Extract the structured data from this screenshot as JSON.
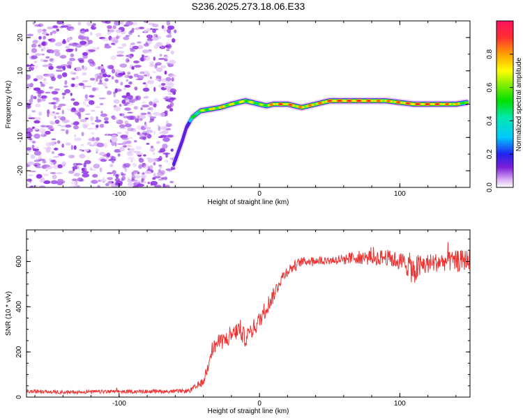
{
  "title": "S236.2025.273.18.06.E33",
  "chart_data": [
    {
      "type": "heatmap",
      "xlabel": "Height of straight line (km)",
      "ylabel": "Frequency (Hz)",
      "xlim": [
        -166,
        150
      ],
      "ylim": [
        -25,
        25
      ],
      "xticks": [
        -100,
        0,
        100
      ],
      "xtick_labels": [
        "-100",
        "0",
        "100"
      ],
      "yticks": [
        20,
        10,
        0,
        -10,
        -20
      ],
      "ytick_labels": [
        "20",
        "10",
        "0",
        "-10",
        "-20"
      ],
      "colorbar": {
        "label": "Normalized spectral amplitude",
        "range": [
          0,
          1
        ],
        "ticks": [
          0,
          0.2,
          0.4,
          0.6,
          0.8
        ],
        "tick_labels": [
          "0.0",
          "0.2",
          "0.4",
          "0.6",
          "0.8"
        ]
      },
      "noise_region_x": [
        -166,
        -60
      ],
      "noise_amplitude": 0.15,
      "ridge": {
        "x": [
          -61,
          -55,
          -52,
          -48,
          -42,
          -35,
          -28,
          -20,
          -15,
          -10,
          -5,
          0,
          5,
          10,
          20,
          30,
          40,
          50,
          60,
          70,
          80,
          90,
          100,
          110,
          120,
          130,
          140,
          148
        ],
        "freq": [
          -18,
          -11,
          -7,
          -4,
          -2,
          -1.5,
          -1,
          0,
          0.5,
          1,
          0.5,
          0,
          -0.5,
          0,
          0,
          -1,
          0,
          1,
          1,
          1,
          1,
          1,
          0.5,
          0,
          0,
          0,
          0,
          0.5
        ],
        "amplitude": [
          0.22,
          0.2,
          0.25,
          0.5,
          0.65,
          0.75,
          0.8,
          0.75,
          0.7,
          0.75,
          0.7,
          0.65,
          0.7,
          0.9,
          0.92,
          0.85,
          0.85,
          0.92,
          0.95,
          0.95,
          0.92,
          0.85,
          0.9,
          0.95,
          0.95,
          0.92,
          0.85,
          0.6
        ]
      }
    },
    {
      "type": "line",
      "xlabel": "Height of straight line (km)",
      "ylabel": "SNR (10 * v/v)",
      "xlim": [
        -166,
        150
      ],
      "ylim": [
        0,
        740
      ],
      "xticks": [
        -100,
        0,
        100
      ],
      "xtick_labels": [
        "-100",
        "0",
        "100"
      ],
      "yticks": [
        0,
        200,
        400,
        600
      ],
      "ytick_labels": [
        "0",
        "200",
        "400",
        "600"
      ],
      "color": "#ee3333",
      "series": [
        {
          "name": "SNR",
          "x": [
            -166,
            -140,
            -110,
            -80,
            -60,
            -50,
            -45,
            -40,
            -37,
            -35,
            -30,
            -25,
            -20,
            -15,
            -10,
            -5,
            0,
            5,
            10,
            15,
            20,
            25,
            30,
            40,
            50,
            60,
            70,
            80,
            90,
            100,
            105,
            110,
            115,
            120,
            130,
            140,
            150
          ],
          "values": [
            25,
            22,
            24,
            25,
            25,
            28,
            45,
            70,
            130,
            200,
            240,
            250,
            270,
            300,
            260,
            300,
            340,
            400,
            450,
            520,
            560,
            580,
            600,
            605,
            605,
            610,
            620,
            615,
            620,
            600,
            590,
            560,
            580,
            590,
            600,
            600,
            610
          ],
          "jitter": [
            8,
            8,
            8,
            8,
            8,
            10,
            15,
            20,
            30,
            35,
            35,
            35,
            40,
            40,
            40,
            40,
            40,
            40,
            35,
            30,
            25,
            25,
            20,
            20,
            20,
            25,
            30,
            35,
            35,
            40,
            55,
            70,
            55,
            45,
            40,
            50,
            45
          ]
        }
      ]
    }
  ]
}
